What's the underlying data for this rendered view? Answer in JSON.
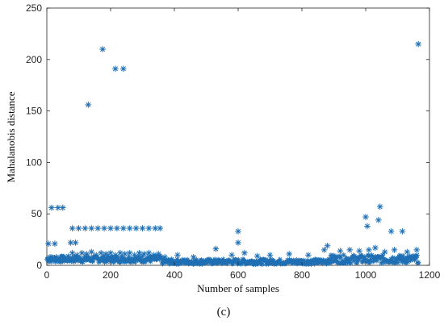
{
  "chart_data": {
    "type": "scatter",
    "xlabel": "Number of samples",
    "ylabel": "Mahalanobis distance",
    "xlim": [
      0,
      1200
    ],
    "ylim": [
      0,
      250
    ],
    "xticks": [
      0,
      200,
      400,
      600,
      800,
      1000,
      1200
    ],
    "yticks": [
      0,
      50,
      100,
      150,
      200,
      250
    ],
    "grid": false,
    "marker": "asterisk",
    "marker_color": "#1f6fb4",
    "panel_label": "(c)",
    "outliers": {
      "x": [
        5,
        15,
        25,
        35,
        50,
        10,
        30,
        50,
        75,
        90,
        130,
        175,
        215,
        240,
        600,
        600,
        880,
        1000,
        1005,
        1040,
        1045,
        1080,
        1115,
        1165
      ],
      "y": [
        21,
        56,
        21,
        56,
        56,
        8,
        8,
        8,
        22,
        22,
        156,
        210,
        191,
        191,
        33,
        22,
        19,
        47,
        38,
        44,
        57,
        33,
        33,
        215
      ]
    },
    "band_37": {
      "x": [
        80,
        100,
        120,
        140,
        160,
        180,
        200,
        220,
        240,
        260,
        280,
        300,
        320,
        340,
        355
      ],
      "y": [
        36,
        36,
        36,
        36,
        36,
        36,
        36,
        36,
        36,
        36,
        36,
        36,
        36,
        36,
        36
      ]
    },
    "band_12": {
      "x": [
        80,
        95,
        110,
        125,
        140,
        155,
        170,
        185,
        200,
        215,
        230,
        245,
        260,
        275,
        290,
        305,
        320,
        335,
        350,
        370,
        410,
        460,
        530,
        580,
        620,
        660,
        700,
        760,
        820,
        870,
        920,
        950,
        980,
        1010,
        1030,
        1060,
        1090,
        1130,
        1160
      ],
      "y": [
        12,
        10,
        12,
        11,
        13,
        10,
        12,
        11,
        12,
        10,
        12,
        11,
        12,
        10,
        12,
        11,
        12,
        10,
        11,
        8,
        10,
        8,
        16,
        10,
        12,
        9,
        10,
        11,
        10,
        15,
        14,
        15,
        14,
        15,
        17,
        13,
        15,
        13,
        15
      ]
    }
  }
}
